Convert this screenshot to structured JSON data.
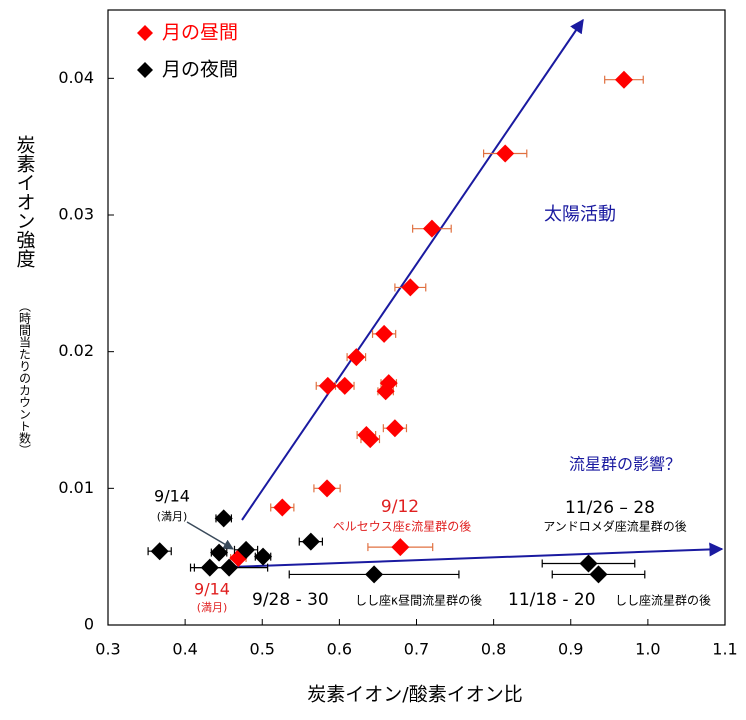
{
  "chart_data": {
    "type": "scatter",
    "xlabel": "炭素イオン/酸素イオン比",
    "ylabel": "炭素イオン強度",
    "ylabel_note": "（時間当たりのカウント数）",
    "xlim": [
      0.3,
      1.1
    ],
    "ylim": [
      0,
      0.045
    ],
    "xticks": [
      0.3,
      0.4,
      0.5,
      0.6,
      0.7,
      0.8,
      0.9,
      {
        "value": 1.0,
        "label": "1.0"
      },
      1.1
    ],
    "yticks": [
      0,
      0.01,
      0.02,
      0.03,
      0.04
    ],
    "legend": "upper left",
    "series": [
      {
        "name": "月の昼間",
        "color": "#ff0000",
        "error_color": "#e07040",
        "x": [
          0.969,
          0.815,
          0.72,
          0.692,
          0.658,
          0.622,
          0.585,
          0.607,
          0.664,
          0.66,
          0.635,
          0.64,
          0.672,
          0.584,
          0.526,
          0.679,
          0.469
        ],
        "y": [
          0.0399,
          0.0345,
          0.029,
          0.0247,
          0.0213,
          0.0196,
          0.0175,
          0.0175,
          0.0177,
          0.0171,
          0.0139,
          0.0136,
          0.0144,
          0.01,
          0.0086,
          0.0057,
          0.0049
        ],
        "x_err": [
          0.025,
          0.028,
          0.025,
          0.02,
          0.015,
          0.012,
          0.015,
          0.012,
          0.01,
          0.01,
          0.012,
          0.012,
          0.015,
          0.017,
          0.015,
          0.042,
          0.01
        ]
      },
      {
        "name": "月の夜間",
        "color": "#000000",
        "error_color": "#000000",
        "x": [
          0.367,
          0.45,
          0.444,
          0.432,
          0.457,
          0.479,
          0.501,
          0.563,
          0.645,
          0.923,
          0.936
        ],
        "y": [
          0.0054,
          0.0078,
          0.0053,
          0.0042,
          0.0042,
          0.0055,
          0.005,
          0.0061,
          0.0037,
          0.0045,
          0.0037
        ],
        "x_err": [
          0.015,
          0.01,
          0.01,
          0.02,
          0.05,
          0.015,
          0.01,
          0.015,
          0.11,
          0.06,
          0.06
        ]
      }
    ],
    "annotations": [
      {
        "text": "太陽活動",
        "color": "#1a1aa0"
      },
      {
        "text": "流星群の影響？",
        "color": "#1a1aa0"
      },
      {
        "text": "9/14",
        "color": "#000000"
      },
      {
        "text": "(満月)",
        "color": "#000000"
      },
      {
        "text": "9/14",
        "color": "#e02020"
      },
      {
        "text": "(満月)",
        "color": "#e02020"
      },
      {
        "text": "9/12",
        "color": "#e02020"
      },
      {
        "text": "ペルセウス座ε流星群の後",
        "color": "#e02020"
      },
      {
        "text": "11/26 – 28",
        "color": "#000000"
      },
      {
        "text": "アンドロメダ座流星群の後",
        "color": "#000000"
      },
      {
        "text": "9/28 - 30",
        "color": "#000000"
      },
      {
        "text": "しし座κ昼間流星群の後",
        "color": "#000000"
      },
      {
        "text": "11/18 - 20",
        "color": "#000000"
      },
      {
        "text": "しし座流星群の後",
        "color": "#000000"
      }
    ]
  }
}
